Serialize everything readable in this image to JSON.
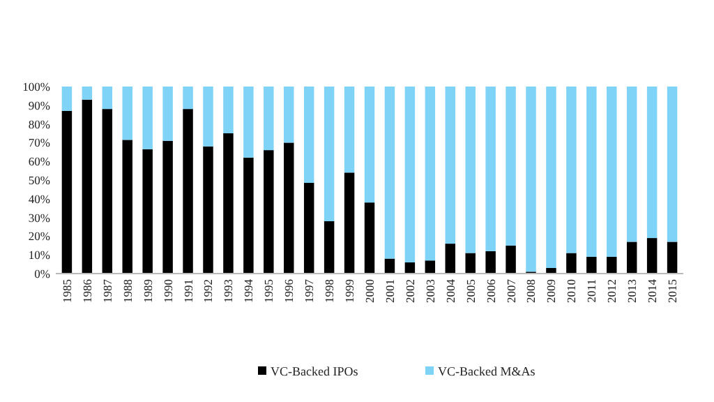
{
  "chart_data": {
    "type": "bar",
    "stacked": true,
    "categories": [
      "1985",
      "1986",
      "1987",
      "1988",
      "1989",
      "1990",
      "1991",
      "1992",
      "1993",
      "1994",
      "1995",
      "1996",
      "1997",
      "1998",
      "1999",
      "2000",
      "2001",
      "2002",
      "2003",
      "2004",
      "2005",
      "2006",
      "2007",
      "2008",
      "2009",
      "2010",
      "2011",
      "2012",
      "2013",
      "2014",
      "2015"
    ],
    "series": [
      {
        "name": "VC-Backed IPOs",
        "color": "#000000",
        "values": [
          87,
          93,
          88,
          71.5,
          66.5,
          71,
          88,
          68,
          75,
          62,
          66,
          70,
          48.5,
          28,
          54,
          38,
          8,
          6,
          7,
          16,
          11,
          12,
          15,
          1,
          3,
          11,
          9,
          9,
          17,
          19,
          17
        ]
      },
      {
        "name": "VC-Backed M&As",
        "color": "#7fd3f7",
        "values": [
          13,
          7,
          12,
          28.5,
          33.5,
          29,
          12,
          32,
          25,
          38,
          34,
          30,
          51.5,
          72,
          46,
          62,
          92,
          94,
          93,
          84,
          89,
          88,
          85,
          99,
          97,
          89,
          91,
          91,
          83,
          81,
          83
        ]
      }
    ],
    "ylim": [
      0,
      100
    ],
    "yticks": [
      {
        "value": 0,
        "label": "0%"
      },
      {
        "value": 10,
        "label": "10%"
      },
      {
        "value": 20,
        "label": "20%"
      },
      {
        "value": 30,
        "label": "30%"
      },
      {
        "value": 40,
        "label": "40%"
      },
      {
        "value": 50,
        "label": "50%"
      },
      {
        "value": 60,
        "label": "60%"
      },
      {
        "value": 70,
        "label": "70%"
      },
      {
        "value": 80,
        "label": "80%"
      },
      {
        "value": 90,
        "label": "90%"
      },
      {
        "value": 100,
        "label": "100%"
      }
    ],
    "legend": "bottom",
    "grid": false
  }
}
